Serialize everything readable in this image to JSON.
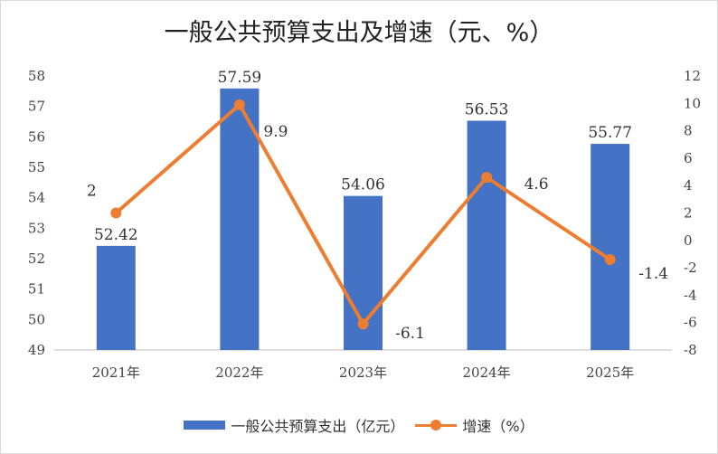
{
  "chart_data": {
    "type": "bar",
    "title": "一般公共预算支出及增速（元、%）",
    "categories": [
      "2021年",
      "2022年",
      "2023年",
      "2024年",
      "2025年"
    ],
    "series": [
      {
        "name": "一般公共预算支出（亿元）",
        "type": "bar",
        "axis": "left",
        "values": [
          52.42,
          57.59,
          54.06,
          56.53,
          55.77
        ],
        "labels": [
          "52.42",
          "57.59",
          "54.06",
          "56.53",
          "55.77"
        ]
      },
      {
        "name": "增速（%）",
        "type": "line",
        "axis": "right",
        "values": [
          2,
          9.9,
          -6.1,
          4.6,
          -1.4
        ],
        "labels": [
          "2",
          "9.9",
          "-6.1",
          "4.6",
          "-1.4"
        ]
      }
    ],
    "left_axis": {
      "min": 49,
      "max": 58,
      "ticks": [
        "49",
        "50",
        "51",
        "52",
        "53",
        "54",
        "55",
        "56",
        "57",
        "58"
      ]
    },
    "right_axis": {
      "min": -8,
      "max": 12,
      "ticks": [
        "-8",
        "-6",
        "-4",
        "-2",
        "0",
        "2",
        "4",
        "6",
        "8",
        "10",
        "12"
      ]
    },
    "grid": false,
    "legend_position": "bottom",
    "colors": {
      "bar": "#4472c4",
      "line": "#ed7d31"
    }
  }
}
